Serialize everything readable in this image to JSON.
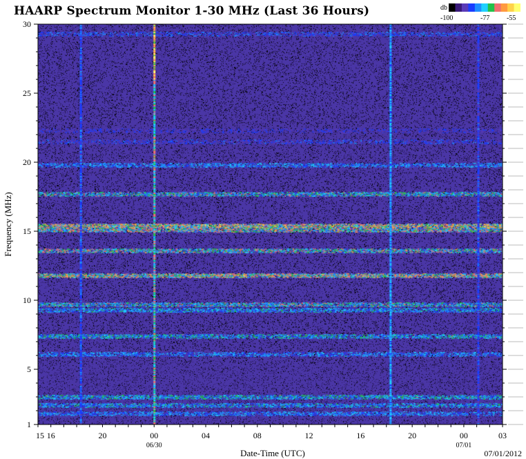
{
  "page": {
    "title": "HAARP Spectrum Monitor 1-30 MHz (Last 36 Hours)",
    "footer_date": "07/01/2012"
  },
  "legend": {
    "unit": "db",
    "ticks": [
      "-100",
      "-77",
      "-55"
    ],
    "colors": [
      "#000000",
      "#3a1a7a",
      "#5a3ab8",
      "#1a3cff",
      "#1f8fff",
      "#20d0ff",
      "#22c24a",
      "#f07070",
      "#ff9a40",
      "#ffd24a",
      "#ffff70"
    ]
  },
  "chart_data": {
    "type": "heatmap",
    "title": "HAARP Spectrum Monitor 1-30 MHz (Last 36 Hours)",
    "xlabel": "Date-Time (UTC)",
    "ylabel": "Frequency (MHz)",
    "x_tick_labels": [
      "15",
      "16",
      "20",
      "00",
      "04",
      "08",
      "12",
      "16",
      "20",
      "00",
      "03"
    ],
    "x_tick_hours": [
      15,
      16,
      20,
      24,
      28,
      32,
      36,
      40,
      44,
      48,
      51
    ],
    "x_date_labels": [
      {
        "label": "06/30",
        "hour": 24
      },
      {
        "label": "07/01",
        "hour": 48
      }
    ],
    "xlim_hours": [
      15,
      51
    ],
    "ylim": [
      1,
      30
    ],
    "y_ticks": [
      1,
      5,
      10,
      15,
      20,
      25,
      30
    ],
    "color_scale_db": [
      -100,
      -55
    ],
    "background_color": "#4a36a6",
    "bands": [
      {
        "freq": 29.3,
        "level": 0.35
      },
      {
        "freq": 22.3,
        "level": 0.25
      },
      {
        "freq": 21.5,
        "level": 0.3
      },
      {
        "freq": 19.8,
        "level": 0.45
      },
      {
        "freq": 17.7,
        "level": 0.6
      },
      {
        "freq": 15.4,
        "level": 0.8
      },
      {
        "freq": 15.1,
        "level": 0.7
      },
      {
        "freq": 13.6,
        "level": 0.65
      },
      {
        "freq": 11.8,
        "level": 0.75
      },
      {
        "freq": 9.7,
        "level": 0.6
      },
      {
        "freq": 9.3,
        "level": 0.5
      },
      {
        "freq": 7.4,
        "level": 0.55
      },
      {
        "freq": 6.1,
        "level": 0.45
      },
      {
        "freq": 3.0,
        "level": 0.55
      },
      {
        "freq": 2.4,
        "level": 0.5
      },
      {
        "freq": 1.8,
        "level": 0.45
      }
    ],
    "spikes": [
      {
        "hour": 24.0,
        "level": 1.0
      },
      {
        "hour": 18.3,
        "level": 0.5
      },
      {
        "hour": 42.3,
        "level": 0.7
      },
      {
        "hour": 49.1,
        "level": 0.45
      }
    ]
  }
}
